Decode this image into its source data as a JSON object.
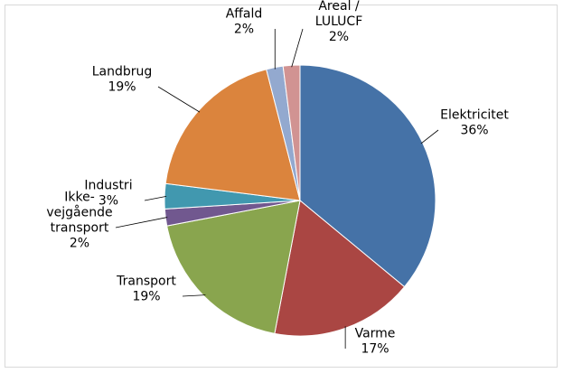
{
  "chart_data": {
    "type": "pie",
    "categories": [
      "Elektricitet",
      "Varme",
      "Transport",
      "Ikke-vejgående transport",
      "Industri",
      "Landbrug",
      "Affald",
      "Areal / LULUCF"
    ],
    "values": [
      36,
      17,
      19,
      2,
      3,
      19,
      2,
      2
    ],
    "value_labels": [
      "36%",
      "17%",
      "19%",
      "2%",
      "3%",
      "19%",
      "2%",
      "2%"
    ],
    "colors": [
      "#4572a7",
      "#aa4643",
      "#89a54e",
      "#71588f",
      "#4198af",
      "#db843d",
      "#93a9cf",
      "#d19392"
    ]
  }
}
